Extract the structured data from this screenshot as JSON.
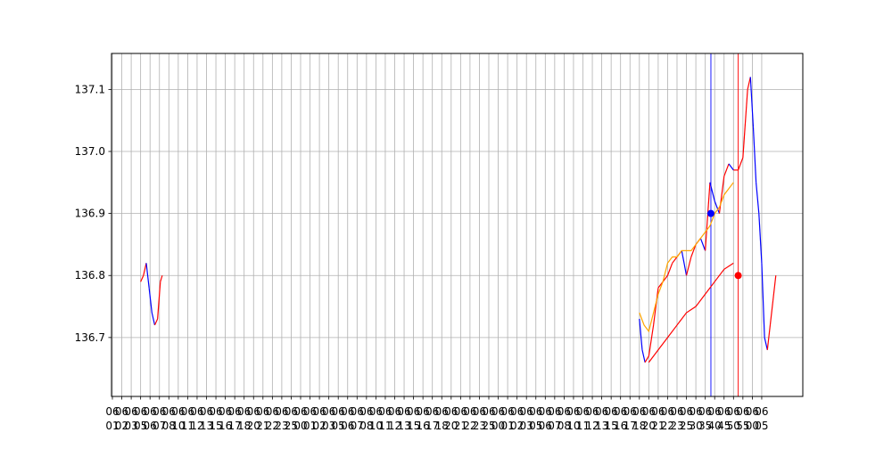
{
  "chart_data": {
    "type": "line",
    "title": "",
    "xlabel": "",
    "ylabel": "",
    "ylim": [
      136.605,
      137.158
    ],
    "grid": true,
    "yticks": [
      "136.7",
      "136.8",
      "136.9",
      "137.0",
      "137.1"
    ],
    "ytick_values": [
      136.7,
      136.8,
      136.9,
      137.0,
      137.1
    ],
    "x_tick_count": 70,
    "x_tick_labels_top": [
      "06",
      "06",
      "06",
      "06",
      "06",
      "06",
      "06",
      "06",
      "06",
      "06",
      "06",
      "06",
      "06",
      "06",
      "06",
      "06",
      "06",
      "06",
      "06",
      "06",
      "06",
      "06",
      "06",
      "06",
      "06",
      "06",
      "06",
      "06",
      "06",
      "06",
      "06",
      "06",
      "06",
      "06",
      "06",
      "06",
      "06",
      "06",
      "06",
      "06",
      "06",
      "06",
      "06",
      "06",
      "06",
      "06",
      "06",
      "06",
      "06",
      "06",
      "06",
      "06",
      "06",
      "06",
      "06",
      "06",
      "06",
      "06",
      "06",
      "06",
      "06",
      "06",
      "06",
      "06",
      "06",
      "06",
      "06",
      "06",
      "06",
      "06"
    ],
    "x_tick_labels_bottom": [
      "01",
      "02",
      "03",
      "05",
      "06",
      "07",
      "08",
      "10",
      "11",
      "12",
      "13",
      "15",
      "16",
      "17",
      "18",
      "20",
      "21",
      "22",
      "23",
      "25",
      "00",
      "01",
      "02",
      "03",
      "05",
      "06",
      "07",
      "08",
      "10",
      "11",
      "12",
      "13",
      "15",
      "16",
      "17",
      "18",
      "20",
      "21",
      "22",
      "23",
      "25",
      "00",
      "01",
      "02",
      "03",
      "05",
      "06",
      "07",
      "08",
      "10",
      "11",
      "12",
      "13",
      "15",
      "16",
      "17",
      "18",
      "20",
      "21",
      "22",
      "23",
      "25",
      "30",
      "35",
      "40",
      "45",
      "50",
      "55",
      "00",
      "05"
    ],
    "colors": {
      "price_up": "#ff0000",
      "price_down": "#0000ff",
      "ma_short": "#ffa500",
      "ma_long": "#ff0000",
      "grid": "#b0b0b0",
      "vline_blue": "#0000ff",
      "vline_red": "#ff0000"
    },
    "series": [
      {
        "kind": "price",
        "segments": [
          [
            [
              3,
              136.79
            ],
            [
              3.3,
              136.8
            ],
            [
              3.6,
              136.82
            ],
            [
              3.9,
              136.78
            ],
            [
              4.2,
              136.74
            ],
            [
              4.5,
              136.72
            ],
            [
              4.8,
              136.73
            ],
            [
              5.1,
              136.79
            ],
            [
              5.3,
              136.8
            ]
          ],
          [
            [
              56.0,
              136.73
            ],
            [
              56.3,
              136.68
            ],
            [
              56.6,
              136.66
            ],
            [
              57.0,
              136.67
            ],
            [
              57.5,
              136.72
            ],
            [
              58.0,
              136.78
            ],
            [
              58.5,
              136.79
            ],
            [
              59.0,
              136.8
            ],
            [
              59.5,
              136.82
            ],
            [
              60.0,
              136.83
            ],
            [
              60.5,
              136.84
            ],
            [
              61.0,
              136.8
            ],
            [
              61.5,
              136.83
            ],
            [
              62.0,
              136.85
            ],
            [
              62.5,
              136.86
            ],
            [
              63.0,
              136.84
            ],
            [
              63.5,
              136.95
            ],
            [
              64.0,
              136.92
            ],
            [
              64.5,
              136.9
            ],
            [
              65.0,
              136.96
            ],
            [
              65.5,
              136.98
            ],
            [
              66.0,
              136.97
            ],
            [
              66.5,
              136.97
            ],
            [
              67.0,
              136.99
            ],
            [
              67.5,
              137.1
            ],
            [
              67.8,
              137.12
            ],
            [
              68.1,
              137.04
            ],
            [
              68.4,
              136.95
            ],
            [
              68.7,
              136.9
            ],
            [
              69.0,
              136.82
            ],
            [
              69.3,
              136.7
            ],
            [
              69.6,
              136.68
            ],
            [
              69.9,
              136.72
            ],
            [
              70.2,
              136.76
            ],
            [
              70.5,
              136.8
            ]
          ]
        ]
      },
      {
        "kind": "ma_short",
        "points": [
          [
            56.0,
            136.74
          ],
          [
            56.5,
            136.72
          ],
          [
            57.0,
            136.71
          ],
          [
            57.5,
            136.74
          ],
          [
            58.0,
            136.77
          ],
          [
            58.5,
            136.79
          ],
          [
            59.0,
            136.82
          ],
          [
            59.5,
            136.83
          ],
          [
            60.0,
            136.83
          ],
          [
            60.5,
            136.84
          ],
          [
            61.0,
            136.84
          ],
          [
            61.5,
            136.84
          ],
          [
            62.0,
            136.85
          ],
          [
            62.5,
            136.86
          ],
          [
            63.0,
            136.87
          ],
          [
            63.5,
            136.88
          ],
          [
            64.0,
            136.9
          ],
          [
            64.5,
            136.91
          ],
          [
            65.0,
            136.93
          ],
          [
            65.5,
            136.94
          ],
          [
            66.0,
            136.95
          ]
        ]
      },
      {
        "kind": "ma_long",
        "points": [
          [
            57.0,
            136.66
          ],
          [
            58.0,
            136.68
          ],
          [
            59.0,
            136.7
          ],
          [
            60.0,
            136.72
          ],
          [
            61.0,
            136.74
          ],
          [
            62.0,
            136.75
          ],
          [
            63.0,
            136.77
          ],
          [
            64.0,
            136.79
          ],
          [
            65.0,
            136.81
          ],
          [
            66.0,
            136.82
          ]
        ]
      }
    ],
    "vlines": [
      {
        "x": 63.6,
        "color": "#0000ff"
      },
      {
        "x": 66.5,
        "color": "#ff0000"
      }
    ],
    "markers": [
      {
        "x": 63.6,
        "y": 136.9,
        "color": "#0000ff"
      },
      {
        "x": 66.5,
        "y": 136.8,
        "color": "#ff0000"
      }
    ]
  }
}
